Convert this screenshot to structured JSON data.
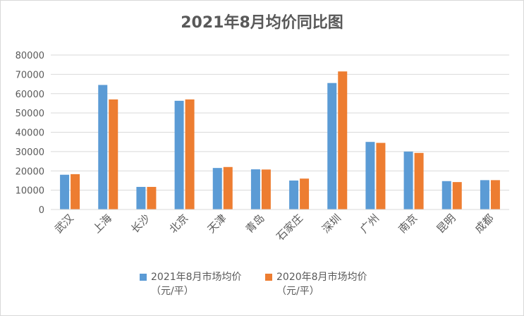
{
  "chart_data": {
    "type": "bar",
    "title": "2021年8月均价同比图",
    "categories": [
      "武汉",
      "上海",
      "长沙",
      "北京",
      "天津",
      "青岛",
      "石家庄",
      "深圳",
      "广州",
      "南京",
      "昆明",
      "成都"
    ],
    "series": [
      {
        "name": "2021年8月市场均价\n（元/平）",
        "color": "#5b9bd5",
        "values": [
          18000,
          64500,
          11700,
          56300,
          21500,
          20800,
          15000,
          65500,
          35000,
          30000,
          14700,
          15200
        ]
      },
      {
        "name": "2020年8月市场均价\n（元/平）",
        "color": "#ed7d31",
        "values": [
          18300,
          57000,
          11700,
          57000,
          22000,
          20700,
          16000,
          71500,
          34500,
          29300,
          14200,
          15200
        ]
      }
    ],
    "yticks": [
      0,
      10000,
      20000,
      30000,
      40000,
      50000,
      60000,
      70000,
      80000
    ],
    "ylim": [
      0,
      80000
    ],
    "grid": true,
    "legend": "bottom"
  }
}
